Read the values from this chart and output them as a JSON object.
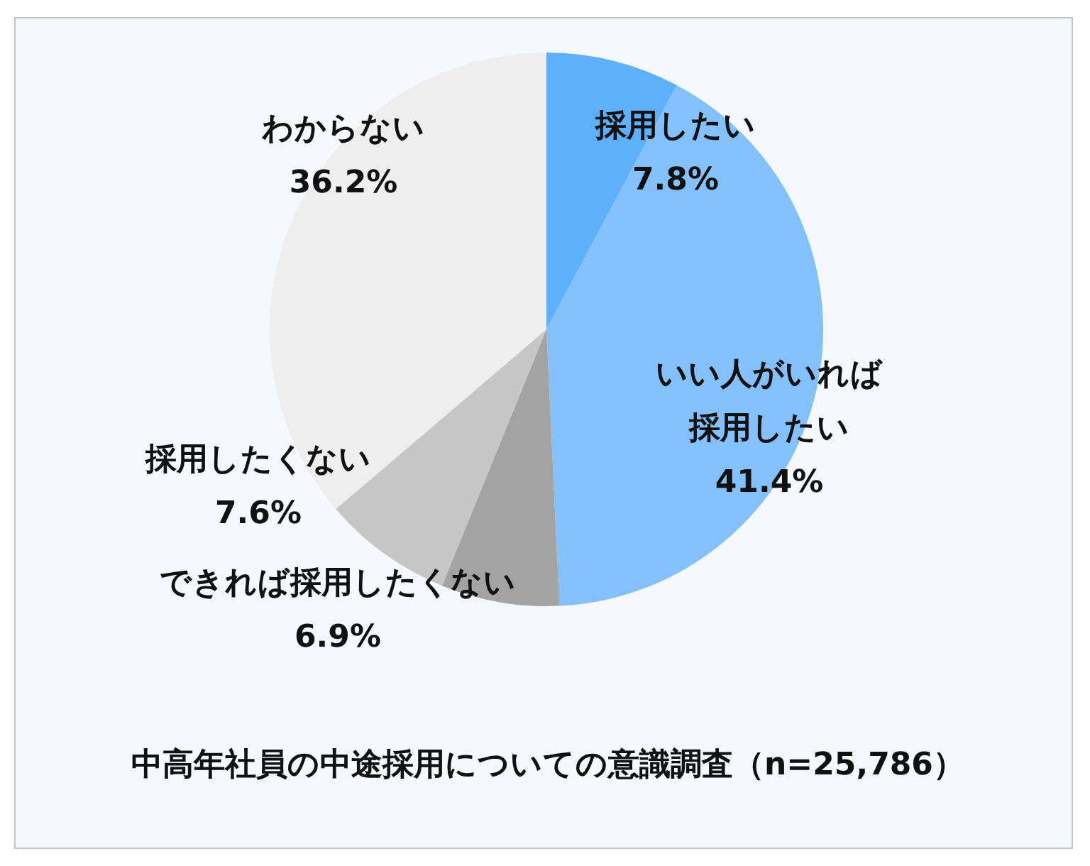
{
  "chart_data": {
    "type": "pie",
    "title": "中高年社員の中途採用についての意識調査（n=25,786）",
    "categories": [
      "採用したい",
      "いい人がいれば採用したい",
      "できれば採用したくない",
      "採用したくない",
      "わからない"
    ],
    "values": [
      7.8,
      41.4,
      6.9,
      7.6,
      36.2
    ],
    "colors": [
      "#5fb0fa",
      "#84c0fb",
      "#a3a3a3",
      "#c6c6c6",
      "#eeeeee"
    ],
    "value_labels": [
      "7.8%",
      "41.4%",
      "6.9%",
      "7.6%",
      "36.2%"
    ],
    "legend": false
  }
}
